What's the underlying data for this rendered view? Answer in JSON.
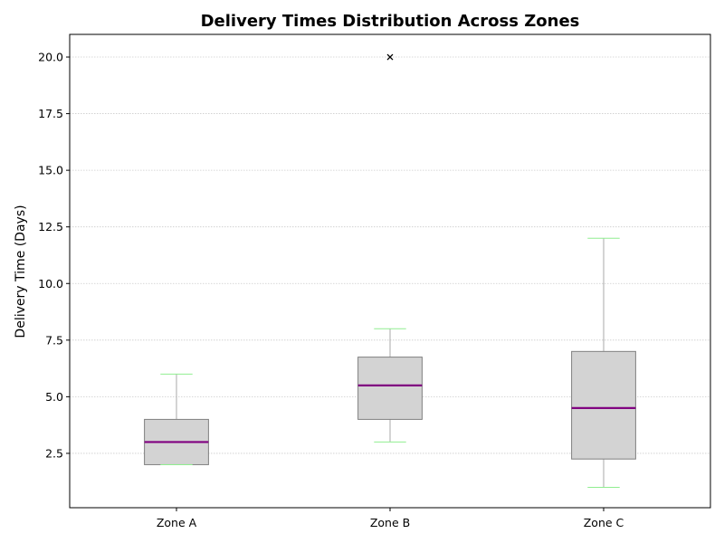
{
  "chart_data": {
    "type": "box",
    "title": "Delivery Times Distribution Across Zones",
    "xlabel": "",
    "ylabel": "Delivery Time (Days)",
    "ylim": [
      0.1,
      21.0
    ],
    "yticks": [
      2.5,
      5.0,
      7.5,
      10.0,
      12.5,
      15.0,
      17.5,
      20.0
    ],
    "ytick_labels": [
      "2.5",
      "5.0",
      "7.5",
      "10.0",
      "12.5",
      "15.0",
      "17.5",
      "20.0"
    ],
    "grid": true,
    "categories": [
      "Zone A",
      "Zone B",
      "Zone C"
    ],
    "boxes": [
      {
        "category": "Zone A",
        "whisker_low": 2.0,
        "q1": 2.0,
        "median": 3.0,
        "q3": 4.0,
        "whisker_high": 6.0,
        "outliers": []
      },
      {
        "category": "Zone B",
        "whisker_low": 3.0,
        "q1": 4.0,
        "median": 5.5,
        "q3": 6.75,
        "whisker_high": 8.0,
        "outliers": [
          20.0
        ]
      },
      {
        "category": "Zone C",
        "whisker_low": 1.0,
        "q1": 2.25,
        "median": 4.5,
        "q3": 7.0,
        "whisker_high": 12.0,
        "outliers": []
      }
    ],
    "colors": {
      "box_fill": "#d3d3d3",
      "box_edge": "#808080",
      "median": "#800080",
      "whisker": "#a9a9a9",
      "cap": "#90ee90",
      "outlier": "#000000",
      "grid": "#cccccc"
    }
  }
}
